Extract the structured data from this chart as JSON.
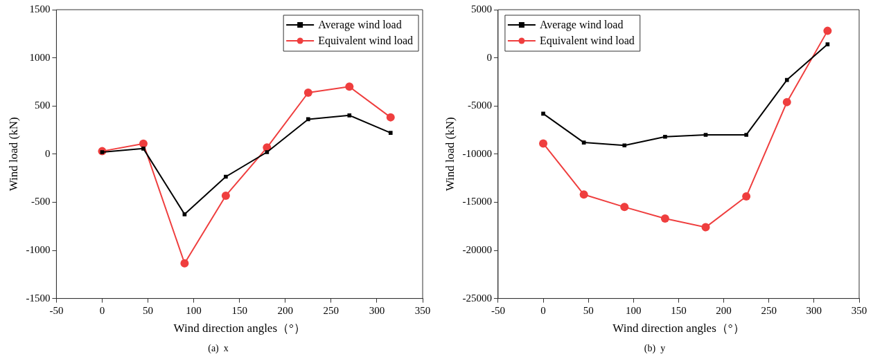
{
  "chart_data": [
    {
      "type": "line",
      "xlabel": "Wind direction angles（°）",
      "ylabel": "Wind load (kN)",
      "annotations": [
        "(a)  x"
      ],
      "legend": "top right",
      "grid": false,
      "line_style": "solid",
      "x": [
        0,
        45,
        90,
        135,
        180,
        225,
        270,
        315
      ],
      "xlim": [
        -50,
        350
      ],
      "xticks": [
        -50,
        0,
        50,
        100,
        150,
        200,
        250,
        300,
        350
      ],
      "ylim": [
        -1500,
        1500
      ],
      "yticks": [
        -1500,
        -1000,
        -500,
        0,
        500,
        1000,
        1500
      ],
      "series": [
        {
          "name": "Average wind load",
          "color": "#000000",
          "marker": "square",
          "values": [
            20,
            57,
            -625,
            -235,
            20,
            362,
            402,
            220
          ]
        },
        {
          "name": "Equivalent wind load",
          "color": "#ef3e3e",
          "marker": "circle",
          "values": [
            30,
            108,
            -1135,
            -432,
            68,
            638,
            700,
            382
          ]
        }
      ]
    },
    {
      "type": "line",
      "xlabel": "Wind direction angles（°）",
      "ylabel": "Wind load (kN)",
      "annotations": [
        "(b)  y"
      ],
      "legend": "top left",
      "grid": false,
      "line_style": "solid",
      "x": [
        0,
        45,
        90,
        135,
        180,
        225,
        270,
        315
      ],
      "xlim": [
        -50,
        350
      ],
      "xticks": [
        -50,
        0,
        50,
        100,
        150,
        200,
        250,
        300,
        350
      ],
      "ylim": [
        -25000,
        5000
      ],
      "yticks": [
        -25000,
        -20000,
        -15000,
        -10000,
        -5000,
        0,
        5000
      ],
      "series": [
        {
          "name": "Average wind load",
          "color": "#000000",
          "marker": "square",
          "values": [
            -5800,
            -8800,
            -9100,
            -8200,
            -8000,
            -8000,
            -2300,
            1400
          ]
        },
        {
          "name": "Equivalent wind load",
          "color": "#ef3e3e",
          "marker": "circle",
          "values": [
            -8900,
            -14200,
            -15500,
            -16700,
            -17600,
            -14400,
            -4600,
            2800
          ]
        }
      ]
    }
  ]
}
